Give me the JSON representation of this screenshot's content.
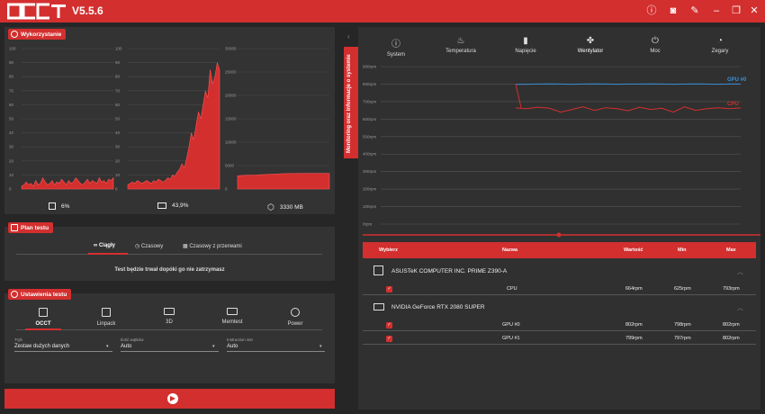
{
  "app": {
    "name": "OCCT",
    "version": "V5.5.6"
  },
  "titlebar_icons": [
    "info-icon",
    "camera-icon",
    "wrench-icon",
    "minimize-icon",
    "restore-icon",
    "close-icon"
  ],
  "usage": {
    "title": "Wykorzystanie",
    "chart1": {
      "ticks": [
        "100",
        "90",
        "80",
        "70",
        "60",
        "50",
        "40",
        "30",
        "20",
        "10",
        "0"
      ],
      "stat": "6%",
      "values": [
        2,
        3,
        5,
        3,
        4,
        2,
        6,
        3,
        4,
        8,
        5,
        3,
        4,
        6,
        3,
        5,
        4,
        7,
        5,
        3,
        6,
        4,
        5,
        8,
        6,
        4,
        3,
        5,
        7,
        4,
        6,
        5,
        4,
        8,
        5,
        6,
        4,
        7,
        6,
        8
      ]
    },
    "chart2": {
      "ticks": [
        "100",
        "90",
        "80",
        "70",
        "60",
        "50",
        "40",
        "30",
        "20",
        "10",
        "0"
      ],
      "stat": "43,9%",
      "values": [
        3,
        4,
        5,
        4,
        6,
        5,
        4,
        5,
        6,
        5,
        4,
        6,
        5,
        7,
        6,
        5,
        6,
        8,
        7,
        10,
        9,
        12,
        14,
        18,
        15,
        22,
        30,
        40,
        35,
        45,
        55,
        50,
        60,
        70,
        65,
        85,
        75,
        80,
        90,
        85
      ]
    },
    "chart3": {
      "ticks": [
        "30000",
        "25000",
        "20000",
        "15000",
        "10000",
        "5000",
        "0"
      ],
      "stat": "3330 MB",
      "values": [
        2800,
        2900,
        2950,
        2980,
        3000,
        3050,
        3100,
        3150,
        3200,
        3250,
        3280,
        3300,
        3310,
        3320,
        3330,
        3330,
        3330,
        3330,
        3330,
        3330
      ]
    }
  },
  "plan": {
    "title": "Plan testu",
    "options": [
      "Ciągły",
      "Czasowy",
      "Czasowy z przerwami"
    ],
    "selected": "Ciągły",
    "description": "Test będzie trwał dopóki go nie zatrzymasz"
  },
  "settings": {
    "title": "Ustawienia testu",
    "modes": [
      "OCCT",
      "Linpack",
      "3D",
      "Memtest",
      "Power"
    ],
    "selected_mode": "OCCT",
    "fields": [
      {
        "label": "Tryb",
        "value": "Zestaw dużych danych"
      },
      {
        "label": "Ilość wątków",
        "value": "Auto"
      },
      {
        "label": "Instruction Set",
        "value": "Auto"
      }
    ]
  },
  "start_button_icon": "play-icon",
  "monitoring": {
    "side_tab": "Monitoring oraz informacje o systemie",
    "tabs": [
      {
        "label": "System",
        "icon": "info-icon"
      },
      {
        "label": "Temperatura",
        "icon": "thermometer-icon"
      },
      {
        "label": "Napięcie",
        "icon": "battery-icon"
      },
      {
        "label": "Wentylator",
        "icon": "fan-icon"
      },
      {
        "label": "Moc",
        "icon": "plug-icon"
      },
      {
        "label": "Zegary",
        "icon": "gauge-icon"
      }
    ],
    "active_tab": "Wentylator",
    "chart_ticks": [
      "900rpm",
      "800rpm",
      "700rpm",
      "600rpm",
      "500rpm",
      "400rpm",
      "300rpm",
      "200rpm",
      "100rpm",
      "0rpm"
    ],
    "legend": [
      {
        "name": "GPU #0",
        "color": "#3b8fd6"
      },
      {
        "name": "CPU",
        "color": "#d32f2f"
      }
    ],
    "series_gpu": [
      798,
      799,
      800,
      801,
      800,
      799,
      800,
      801,
      800,
      799,
      800,
      800,
      801,
      800,
      799,
      800,
      801,
      800,
      799,
      800,
      800
    ],
    "series_cpu": [
      664,
      660,
      668,
      662,
      640,
      655,
      670,
      650,
      665,
      660,
      648,
      668,
      655,
      662,
      640,
      670,
      650,
      660,
      665,
      660,
      664
    ],
    "table": {
      "headers": [
        "Wybierz",
        "Nazwa",
        "Wartość",
        "Min",
        "Max"
      ],
      "groups": [
        {
          "device": "ASUSTeK COMPUTER INC. PRIME Z390-A",
          "rows": [
            {
              "name": "CPU",
              "value": "664rpm",
              "min": "625rpm",
              "max": "793rpm"
            }
          ]
        },
        {
          "device": "NVIDIA GeForce RTX 2080 SUPER",
          "rows": [
            {
              "name": "GPU #0",
              "value": "802rpm",
              "min": "798rpm",
              "max": "802rpm"
            },
            {
              "name": "GPU #1",
              "value": "799rpm",
              "min": "797rpm",
              "max": "802rpm"
            }
          ]
        }
      ]
    }
  }
}
